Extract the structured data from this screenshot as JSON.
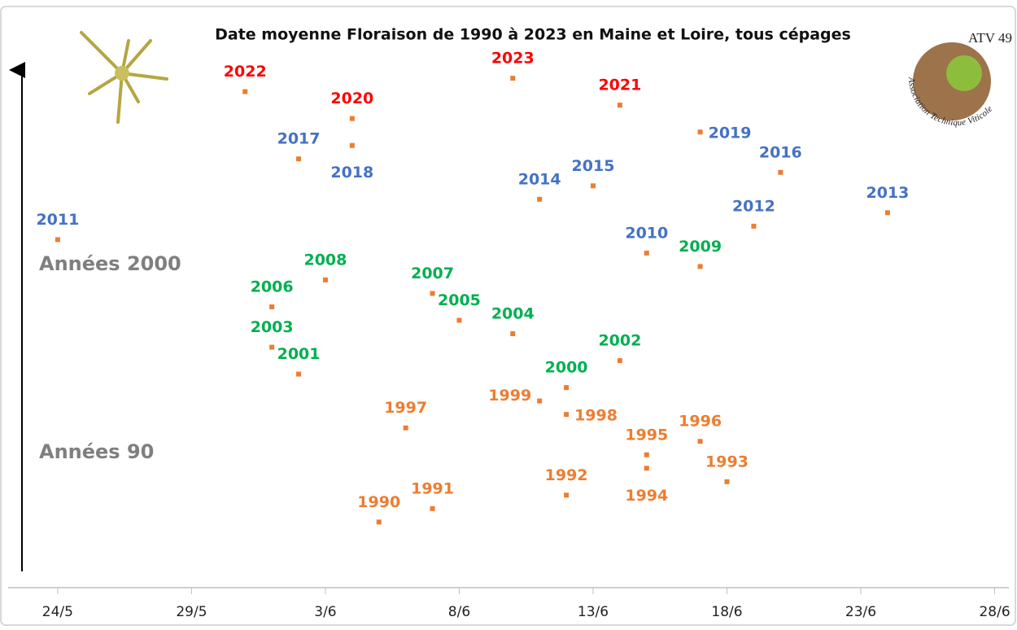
{
  "chart_data": {
    "type": "scatter",
    "title": "Date moyenne Floraison de 1990 à 2023 en Maine et Loire, tous cépages",
    "annotations": [
      "Années 2000",
      "Années 90"
    ],
    "logo": {
      "title": "ATV 49",
      "subtitle": "Association Technique Viticole"
    },
    "marker_color": "#ed7d31",
    "xlim": [
      143,
      179.5
    ],
    "xticks": [
      {
        "value": 144,
        "label": "24/5"
      },
      {
        "value": 149,
        "label": "29/5"
      },
      {
        "value": 154,
        "label": "3/6"
      },
      {
        "value": 159,
        "label": "8/6"
      },
      {
        "value": 164,
        "label": "13/6"
      },
      {
        "value": 169,
        "label": "18/6"
      },
      {
        "value": 174,
        "label": "23/6"
      },
      {
        "value": 179,
        "label": "28/6"
      }
    ],
    "ylim": [
      1985,
      2027
    ],
    "series": [
      {
        "color": "#ff0000",
        "x": [
          151,
          155,
          161,
          165
        ],
        "values": [
          2022,
          2020,
          2023,
          2021
        ]
      },
      {
        "color": "#4472c4",
        "x": [
          144,
          153,
          155,
          168,
          171,
          164,
          162,
          175,
          170,
          166
        ],
        "values": [
          2011,
          2017,
          2018,
          2019,
          2016,
          2015,
          2014,
          2013,
          2012,
          2010
        ]
      },
      {
        "color": "#00b050",
        "x": [
          168,
          154,
          158,
          152,
          159,
          161,
          152,
          165,
          153,
          163
        ],
        "values": [
          2009,
          2008,
          2007,
          2006,
          2005,
          2004,
          2003,
          2002,
          2001,
          2000
        ]
      },
      {
        "color": "#ed7d31",
        "x": [
          162,
          163,
          157,
          168,
          166,
          166,
          169,
          163,
          158,
          156
        ],
        "values": [
          1999,
          1998,
          1997,
          1996,
          1995,
          1994,
          1993,
          1992,
          1991,
          1990
        ]
      }
    ]
  }
}
